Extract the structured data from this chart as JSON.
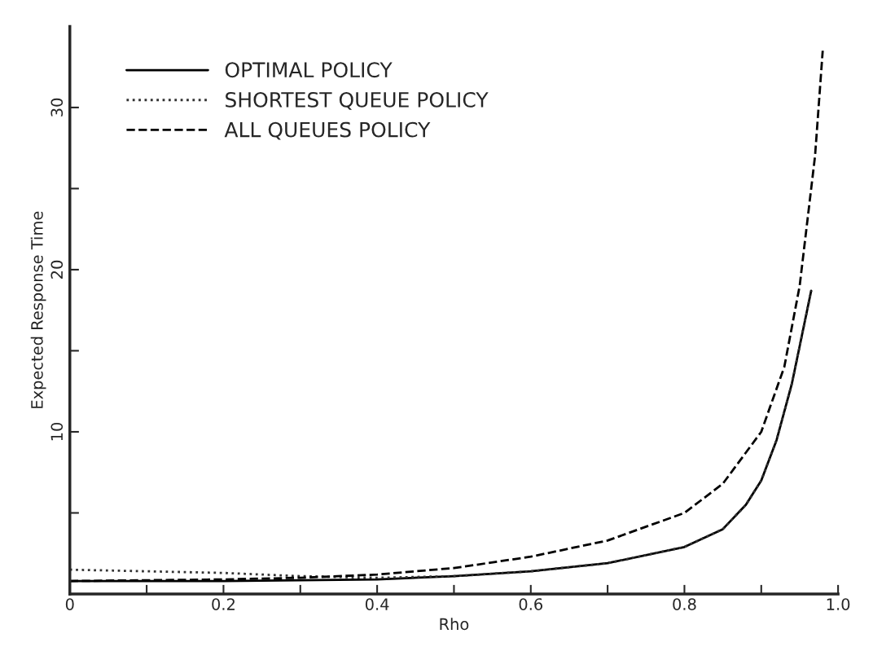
{
  "chart_data": {
    "type": "line",
    "xlabel": "Rho",
    "ylabel": "Expected Response Time",
    "xlim": [
      0,
      1.0
    ],
    "ylim": [
      0,
      35
    ],
    "xticks": [
      {
        "value": 0,
        "label": "0"
      },
      {
        "value": 0.1,
        "label": null
      },
      0.2,
      {
        "value": 0.3,
        "label": null
      },
      0.4,
      {
        "value": 0.5,
        "label": null
      },
      0.6,
      {
        "value": 0.7,
        "label": null
      },
      0.8,
      {
        "value": 0.9,
        "label": null
      },
      {
        "value": 1.0,
        "label": "1.0"
      }
    ],
    "yticks": [
      {
        "value": 5,
        "label": null
      },
      10,
      {
        "value": 15,
        "label": null
      },
      20,
      {
        "value": 25,
        "label": null
      },
      30
    ],
    "grid": false,
    "legend": "top left",
    "series": [
      {
        "name": "OPTIMAL POLICY",
        "color": "#000000",
        "line_style": "solid",
        "x": [
          0,
          0.2,
          0.4,
          0.5,
          0.6,
          0.7,
          0.8,
          0.85,
          0.88,
          0.9,
          0.92,
          0.94,
          0.965
        ],
        "values": [
          0.8,
          0.8,
          0.9,
          1.1,
          1.4,
          1.9,
          2.9,
          4,
          5.5,
          7,
          9.5,
          13,
          18.7
        ]
      },
      {
        "name": "SHORTEST QUEUE POLICY",
        "color": "#333333",
        "line_style": "dotted",
        "x": [
          0,
          0.2,
          0.3,
          0.4,
          0.5,
          0.6,
          0.7,
          0.8,
          0.85,
          0.88,
          0.9,
          0.92,
          0.94,
          0.965
        ],
        "values": [
          1.5,
          1.3,
          1.1,
          1.0,
          1.1,
          1.4,
          1.9,
          2.9,
          4,
          5.5,
          7,
          9.5,
          13,
          18.7
        ]
      },
      {
        "name": "ALL QUEUES POLICY",
        "color": "#000000",
        "line_style": "dashed",
        "x": [
          0,
          0.2,
          0.3,
          0.4,
          0.5,
          0.6,
          0.7,
          0.8,
          0.85,
          0.9,
          0.93,
          0.95,
          0.97,
          0.98
        ],
        "values": [
          0.8,
          0.9,
          1.0,
          1.2,
          1.6,
          2.3,
          3.3,
          5,
          6.8,
          10,
          14,
          19,
          27,
          33.5
        ]
      }
    ]
  }
}
